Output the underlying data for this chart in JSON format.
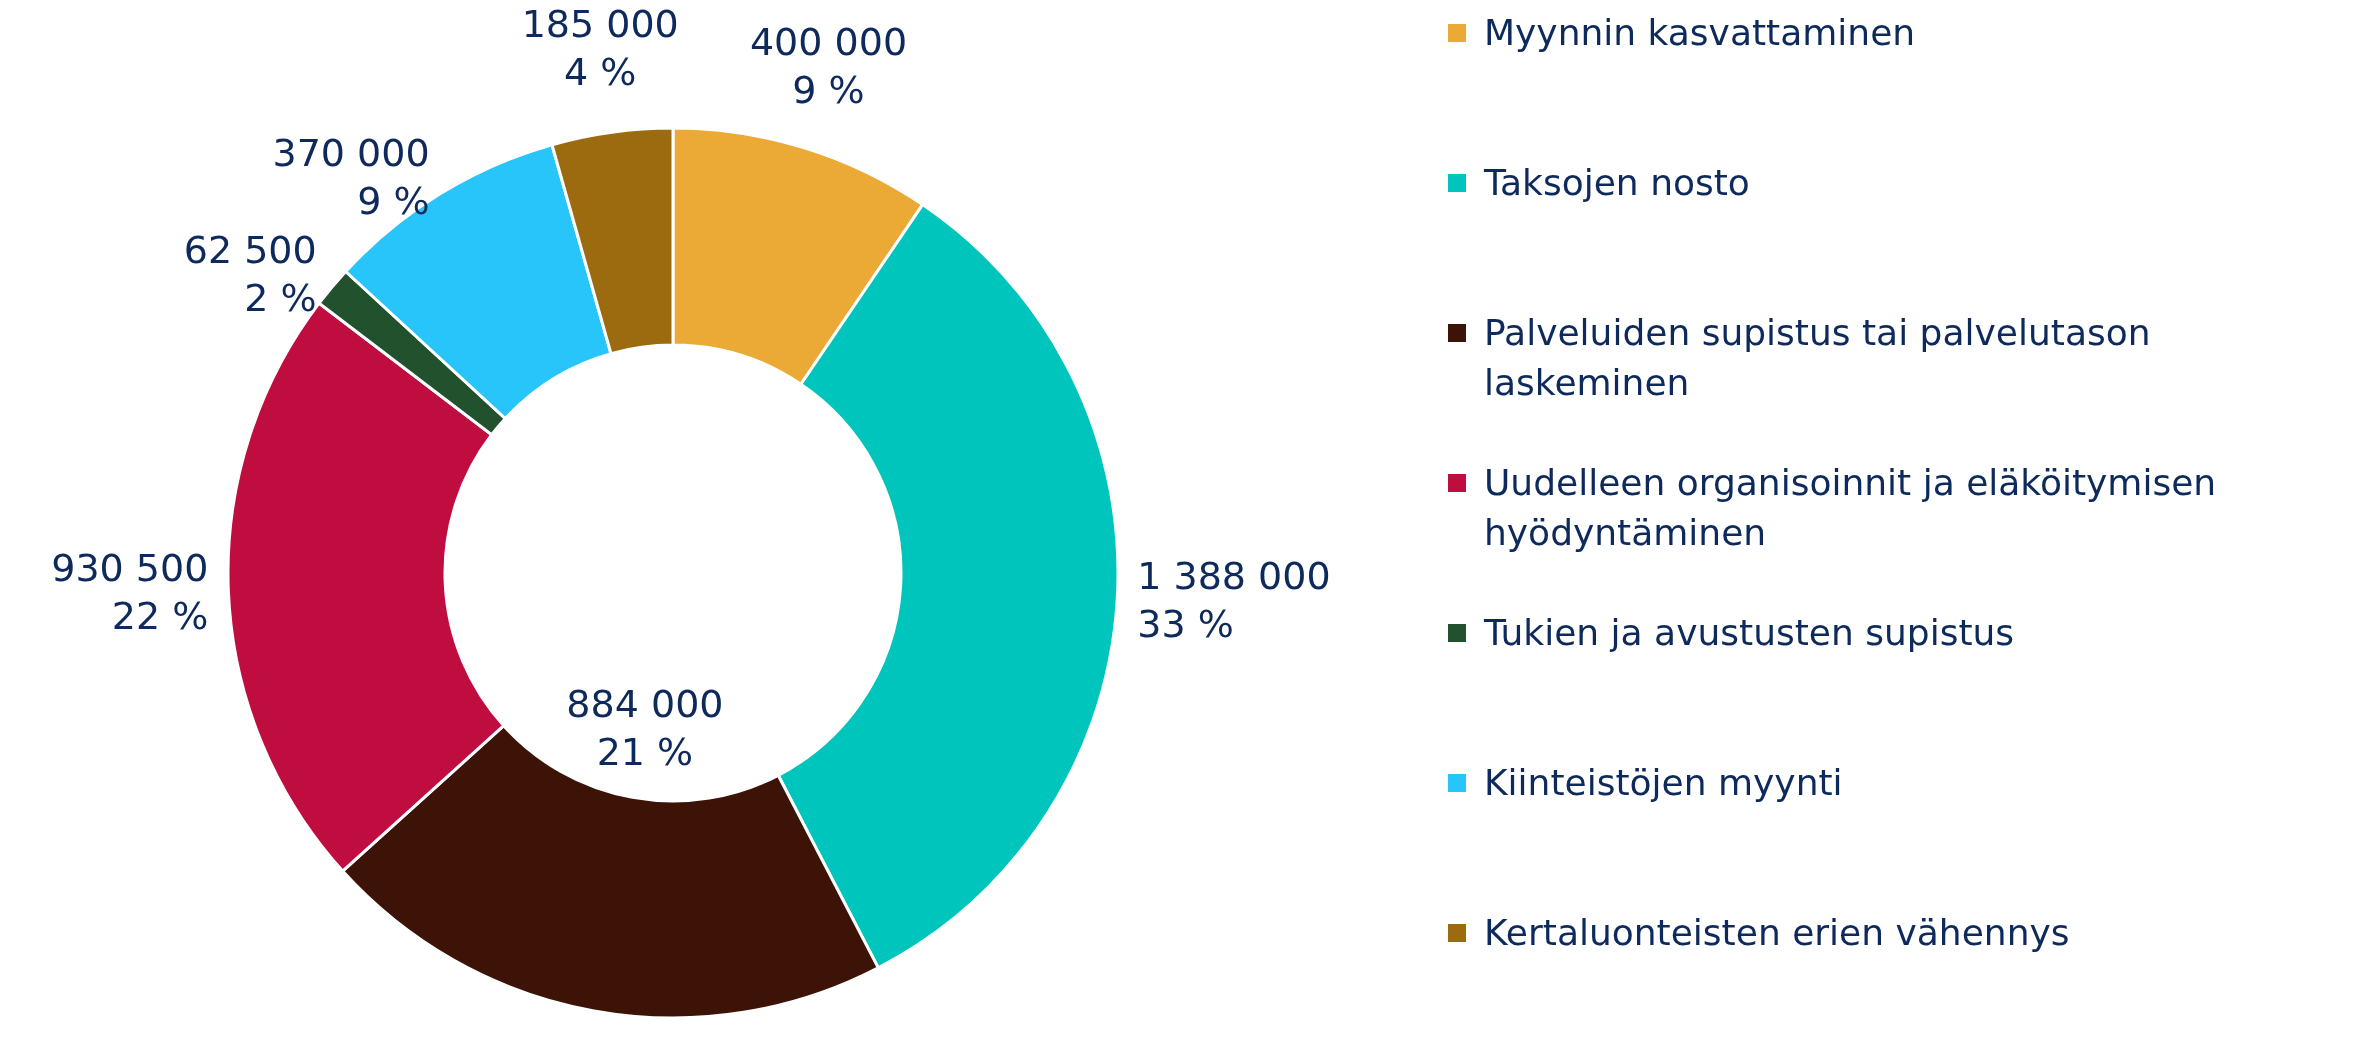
{
  "chart_data": {
    "type": "donut",
    "categories": [
      "Myynnin kasvattaminen",
      "Taksojen nosto",
      "Palveluiden supistus tai palvelutason laskeminen",
      "Uudelleen organisoinnit ja eläköitymisen hyödyntäminen",
      "Tukien ja avustusten supistus",
      "Kiinteistöjen myynti",
      "Kertaluonteisten erien vähennys"
    ],
    "values": [
      400000,
      1388000,
      884000,
      930500,
      62500,
      370000,
      185000
    ],
    "value_labels": [
      "400 000\n9 %",
      "1 388 000\n33 %",
      "884 000\n21 %",
      "930 500\n22 %",
      "62 500\n2 %",
      "370 000\n9 %",
      "185 000\n4 %"
    ],
    "colors": [
      "#eba935",
      "#00c5bd",
      "#3d1308",
      "#c00d3f",
      "#22512d",
      "#28c5fb",
      "#9c6b10"
    ],
    "legend": "right"
  }
}
